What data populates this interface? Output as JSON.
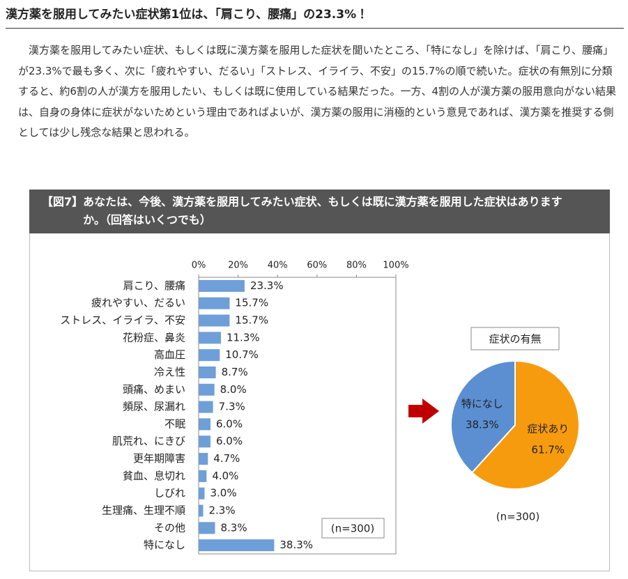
{
  "title": "漢方薬を服用してみたい症状第1位は、「肩こり、腰痛」の23.3%！",
  "body": "漢方薬を服用してみたい症状、もしくは既に漢方薬を服用した症状を聞いたところ、「特になし」を除けば、「肩こり、腰痛」が23.3%で最も多く、次に「疲れやすい、だるい」「ストレス、イライラ、不安」の15.7%の順で続いた。症状の有無別に分類すると、約6割の人が漢方を服用したい、もしくは既に使用している結果だった。一方、4割の人が漢方薬の服用意向がない結果は、自身の身体に症状がないためという理由であればよいが、漢方薬の服用に消極的という意見であれば、漢方薬を推奨する側としては少し残念な結果と思われる。",
  "figure": {
    "label": "【図7】",
    "title": "あなたは、今後、漢方薬を服用してみたい症状、もしくは既に漢方薬を服用した症状はありますか。（回答はいくつでも）"
  },
  "chart_data": [
    {
      "type": "bar",
      "orientation": "horizontal",
      "categories": [
        "肩こり、腰痛",
        "疲れやすい、だるい",
        "ストレス、イライラ、不安",
        "花粉症、鼻炎",
        "高血圧",
        "冷え性",
        "頭痛、めまい",
        "頻尿、尿漏れ",
        "不眠",
        "肌荒れ、にきび",
        "更年期障害",
        "貧血、息切れ",
        "しびれ",
        "生理痛、生理不順",
        "その他",
        "特になし"
      ],
      "values": [
        23.3,
        15.7,
        15.7,
        11.3,
        10.7,
        8.7,
        8.0,
        7.3,
        6.0,
        6.0,
        4.7,
        4.0,
        3.0,
        2.3,
        8.3,
        38.3
      ],
      "value_labels": [
        "23.3%",
        "15.7%",
        "15.7%",
        "11.3%",
        "10.7%",
        "8.7%",
        "8.0%",
        "7.3%",
        "6.0%",
        "6.0%",
        "4.7%",
        "4.0%",
        "3.0%",
        "2.3%",
        "8.3%",
        "38.3%"
      ],
      "color": "#6f9fd8",
      "xlim": [
        0,
        100
      ],
      "xticks": [
        {
          "value": 0,
          "label": "0%"
        },
        {
          "value": 20,
          "label": "20%"
        },
        {
          "value": 40,
          "label": "40%"
        },
        {
          "value": 60,
          "label": "60%"
        },
        {
          "value": 80,
          "label": "80%"
        },
        {
          "value": 100,
          "label": "100%"
        }
      ],
      "note": "(n=300)"
    },
    {
      "type": "pie",
      "title": "症状の有無",
      "categories": [
        "症状あり",
        "特になし"
      ],
      "values": [
        61.7,
        38.3
      ],
      "value_labels": [
        "61.7%",
        "38.3%"
      ],
      "colors": [
        "#f79b0e",
        "#5b8fd2"
      ],
      "note": "(n=300)"
    }
  ]
}
